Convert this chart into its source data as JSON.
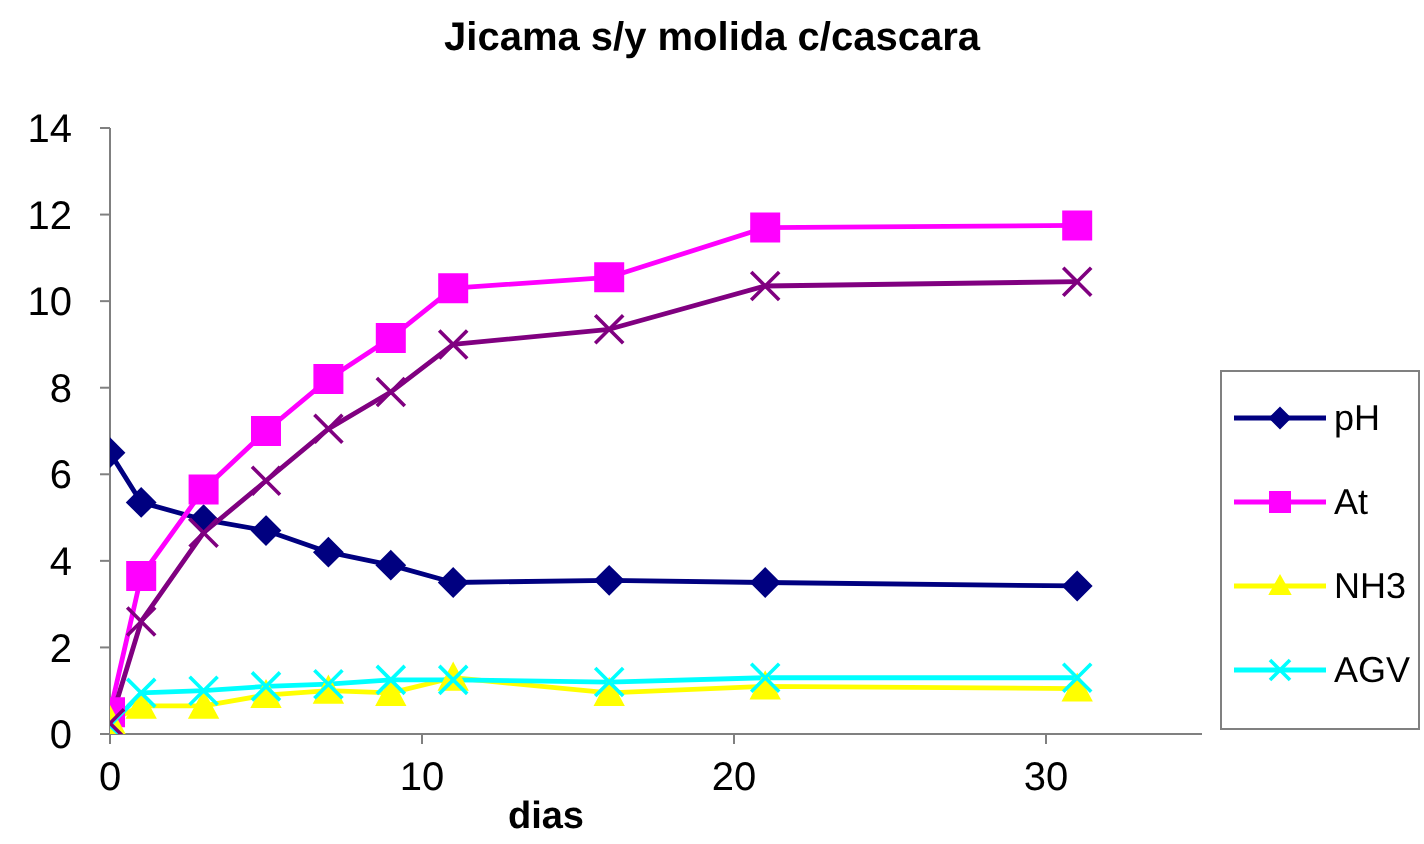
{
  "chart_data": {
    "type": "line",
    "title": "Jicama s/y molida c/cascara",
    "xlabel": "dias",
    "x": [
      0,
      1,
      3,
      5,
      7,
      9,
      11,
      16,
      21,
      31
    ],
    "series": [
      {
        "name": "pH",
        "color": "#000080",
        "marker": "diamond",
        "values": [
          6.5,
          5.35,
          4.95,
          4.7,
          4.2,
          3.9,
          3.5,
          3.55,
          3.5,
          3.42
        ]
      },
      {
        "name": "At",
        "color": "#ff00ff",
        "marker": "square",
        "values": [
          0.5,
          3.65,
          5.65,
          7.0,
          8.2,
          9.15,
          10.3,
          10.55,
          11.7,
          11.75
        ]
      },
      {
        "name": "NH3",
        "color": "#ffff00",
        "marker": "triangle",
        "values": [
          0.3,
          0.65,
          0.65,
          0.9,
          1.0,
          0.95,
          1.3,
          0.95,
          1.1,
          1.05
        ]
      },
      {
        "name": "AGV",
        "color": "#00ffff",
        "marker": "cross",
        "values": [
          0.2,
          0.95,
          1.0,
          1.1,
          1.15,
          1.25,
          1.25,
          1.2,
          1.3,
          1.3
        ]
      },
      {
        "color": "#800080",
        "marker": "cross",
        "values": [
          0.25,
          2.6,
          4.65,
          5.85,
          7.05,
          7.9,
          9.0,
          9.35,
          10.35,
          10.45
        ]
      }
    ],
    "xlim": [
      0,
      35
    ],
    "xticks": [
      0,
      10,
      20,
      30
    ],
    "ylim": [
      0,
      14
    ],
    "yticks": [
      0,
      2,
      4,
      6,
      8,
      10,
      12,
      14
    ],
    "legend": "right",
    "line_style": "solid"
  }
}
